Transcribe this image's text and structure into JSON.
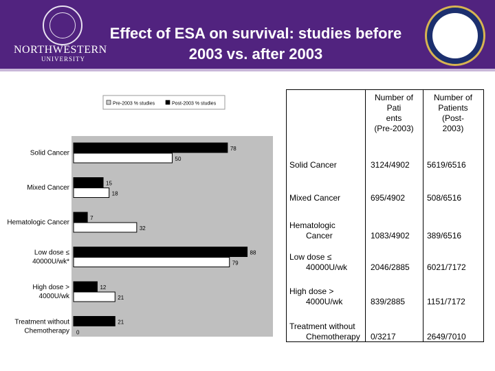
{
  "header": {
    "title_line1": "Effect of ESA on survival: studies before",
    "title_line2": "2003 vs. after 2003",
    "logo_text": "NORTHWESTERN",
    "logo_subtext": "UNIVERSITY",
    "header_color": "#51237f"
  },
  "chart_data": {
    "type": "bar",
    "orientation": "horizontal",
    "categories": [
      "Solid Cancer",
      "Mixed Cancer",
      "Hematologic Cancer",
      "Low dose ≤ 40000U/wk*",
      "High dose > 4000U/wk",
      "Treatment without Chemotherapy"
    ],
    "category_lines": [
      [
        "Solid Cancer"
      ],
      [
        "Mixed Cancer"
      ],
      [
        "Hematologic Cancer"
      ],
      [
        "Low dose ≤",
        "40000U/wk*"
      ],
      [
        "High dose >",
        "4000U/wk"
      ],
      [
        "Treatment without",
        "Chemotherapy"
      ]
    ],
    "series": [
      {
        "name": "Post-2003 % studies",
        "values": [
          78,
          15,
          7,
          88,
          12,
          21
        ],
        "color": "#000000"
      },
      {
        "name": "Pre-2003 % studies",
        "values": [
          50,
          18,
          32,
          79,
          21,
          0
        ],
        "color": "#ffffff"
      }
    ],
    "legend": [
      "Pre-2003 % studies",
      "Post-2003 % studies"
    ],
    "legend_position": "top",
    "xlim": [
      0,
      100
    ],
    "grid": false
  },
  "table": {
    "headers": [
      "Number of Pati ents (Pre-2003)",
      "Number of Patients (Post-2003)"
    ],
    "header_lines": [
      [
        "Number of",
        "Pati",
        "ents",
        "(Pre-2003)"
      ],
      [
        "Number of",
        "Patients",
        "(Post-",
        "2003)"
      ]
    ],
    "rows": [
      {
        "label_lines": [
          "Solid Cancer"
        ],
        "pre": "3124/4902",
        "post": "5619/6516"
      },
      {
        "label_lines": [
          "Mixed Cancer"
        ],
        "pre": "695/4902",
        "post": "508/6516"
      },
      {
        "label_lines": [
          "Hematologic",
          "Cancer"
        ],
        "pre": "1083/4902",
        "post": "389/6516"
      },
      {
        "label_lines": [
          "Low dose ≤",
          "40000U/wk"
        ],
        "pre": "2046/2885",
        "post": "6021/7172"
      },
      {
        "label_lines": [
          "High dose >",
          "4000U/wk"
        ],
        "pre": "839/2885",
        "post": "1151/7172"
      },
      {
        "label_lines": [
          "Treatment without",
          "Chemotherapy"
        ],
        "pre": "0/3217",
        "post": "2649/7010"
      }
    ]
  }
}
